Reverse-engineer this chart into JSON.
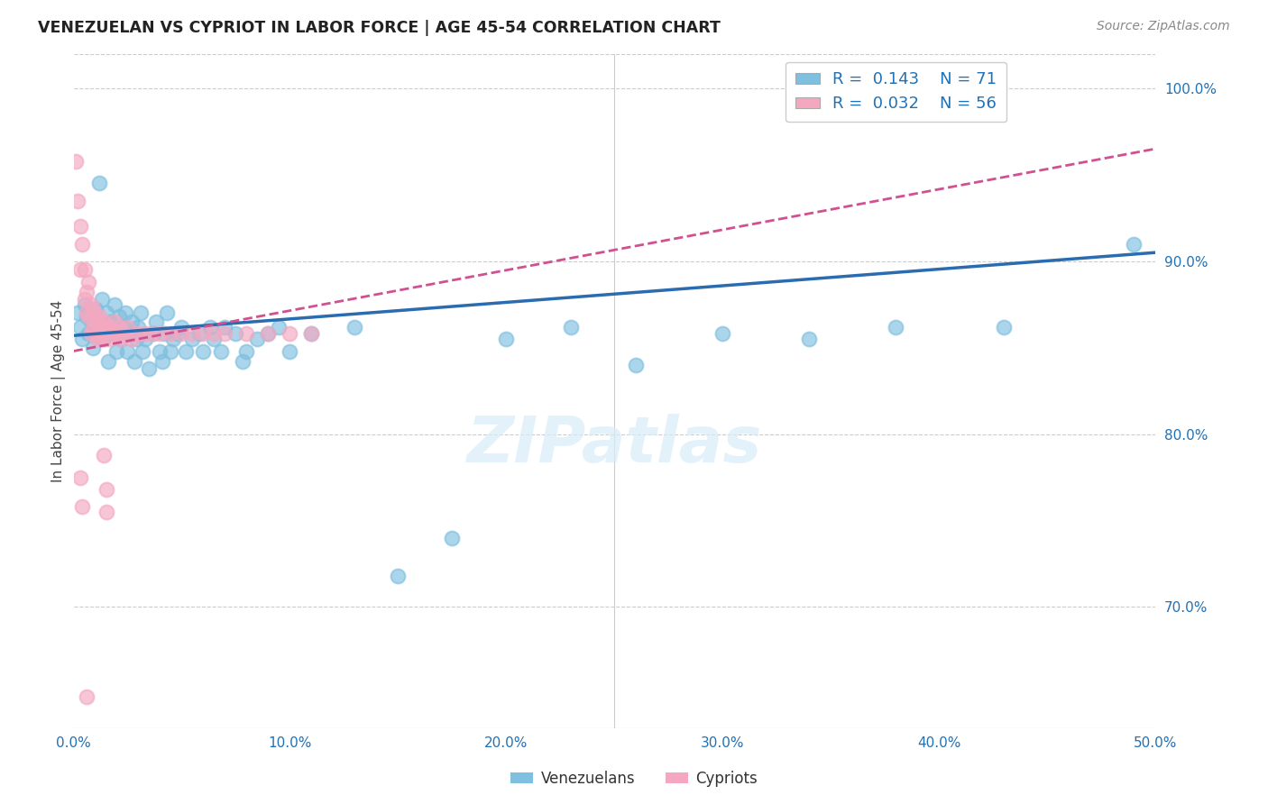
{
  "title": "VENEZUELAN VS CYPRIOT IN LABOR FORCE | AGE 45-54 CORRELATION CHART",
  "source_text": "Source: ZipAtlas.com",
  "ylabel": "In Labor Force | Age 45-54",
  "xlim": [
    0.0,
    0.5
  ],
  "ylim": [
    0.63,
    1.02
  ],
  "xticks": [
    0.0,
    0.1,
    0.2,
    0.3,
    0.4,
    0.5
  ],
  "xtick_labels": [
    "0.0%",
    "10.0%",
    "20.0%",
    "30.0%",
    "40.0%",
    "50.0%"
  ],
  "ytick_vals": [
    0.7,
    0.8,
    0.9,
    1.0
  ],
  "ytick_labels_right": [
    "70.0%",
    "80.0%",
    "90.0%",
    "100.0%"
  ],
  "legend_R_blue": "0.143",
  "legend_N_blue": "71",
  "legend_R_pink": "0.032",
  "legend_N_pink": "56",
  "blue_color": "#7fbfdf",
  "pink_color": "#f4a8c0",
  "trend_blue_color": "#2b6cb0",
  "trend_pink_color": "#d05090",
  "watermark_text": "ZIPatlas",
  "trend_blue_x0": 0.0,
  "trend_blue_y0": 0.857,
  "trend_blue_x1": 0.5,
  "trend_blue_y1": 0.905,
  "trend_pink_x0": 0.0,
  "trend_pink_y0": 0.848,
  "trend_pink_x1": 0.5,
  "trend_pink_y1": 0.965,
  "venezuelans_x": [
    0.002,
    0.003,
    0.004,
    0.005,
    0.006,
    0.007,
    0.008,
    0.009,
    0.01,
    0.011,
    0.012,
    0.013,
    0.014,
    0.015,
    0.015,
    0.016,
    0.017,
    0.018,
    0.019,
    0.02,
    0.021,
    0.022,
    0.023,
    0.024,
    0.025,
    0.026,
    0.027,
    0.028,
    0.029,
    0.03,
    0.031,
    0.032,
    0.033,
    0.035,
    0.037,
    0.038,
    0.04,
    0.041,
    0.042,
    0.043,
    0.045,
    0.046,
    0.048,
    0.05,
    0.052,
    0.055,
    0.058,
    0.06,
    0.063,
    0.065,
    0.068,
    0.07,
    0.075,
    0.078,
    0.08,
    0.085,
    0.09,
    0.095,
    0.1,
    0.11,
    0.13,
    0.15,
    0.175,
    0.2,
    0.23,
    0.26,
    0.3,
    0.34,
    0.38,
    0.43,
    0.49
  ],
  "venezuelans_y": [
    0.87,
    0.862,
    0.855,
    0.875,
    0.868,
    0.858,
    0.865,
    0.85,
    0.872,
    0.858,
    0.945,
    0.878,
    0.855,
    0.862,
    0.87,
    0.842,
    0.865,
    0.858,
    0.875,
    0.848,
    0.868,
    0.855,
    0.862,
    0.87,
    0.848,
    0.858,
    0.865,
    0.842,
    0.855,
    0.862,
    0.87,
    0.848,
    0.855,
    0.838,
    0.858,
    0.865,
    0.848,
    0.842,
    0.858,
    0.87,
    0.848,
    0.855,
    0.858,
    0.862,
    0.848,
    0.855,
    0.858,
    0.848,
    0.862,
    0.855,
    0.848,
    0.862,
    0.858,
    0.842,
    0.848,
    0.855,
    0.858,
    0.862,
    0.848,
    0.858,
    0.862,
    0.718,
    0.74,
    0.855,
    0.862,
    0.84,
    0.858,
    0.855,
    0.862,
    0.862,
    0.91
  ],
  "cypriot_x": [
    0.001,
    0.002,
    0.003,
    0.003,
    0.004,
    0.005,
    0.005,
    0.006,
    0.006,
    0.007,
    0.007,
    0.008,
    0.008,
    0.009,
    0.009,
    0.01,
    0.01,
    0.011,
    0.011,
    0.012,
    0.012,
    0.013,
    0.013,
    0.014,
    0.014,
    0.015,
    0.016,
    0.017,
    0.018,
    0.019,
    0.02,
    0.021,
    0.022,
    0.023,
    0.025,
    0.027,
    0.03,
    0.033,
    0.036,
    0.04,
    0.045,
    0.05,
    0.055,
    0.06,
    0.065,
    0.07,
    0.08,
    0.09,
    0.1,
    0.11,
    0.014,
    0.015,
    0.015,
    0.003,
    0.004,
    0.006
  ],
  "cypriot_y": [
    0.958,
    0.935,
    0.92,
    0.895,
    0.91,
    0.895,
    0.878,
    0.882,
    0.87,
    0.888,
    0.868,
    0.875,
    0.858,
    0.872,
    0.862,
    0.868,
    0.858,
    0.865,
    0.855,
    0.858,
    0.868,
    0.862,
    0.855,
    0.858,
    0.865,
    0.862,
    0.855,
    0.862,
    0.858,
    0.865,
    0.858,
    0.862,
    0.855,
    0.858,
    0.862,
    0.855,
    0.858,
    0.858,
    0.858,
    0.858,
    0.858,
    0.858,
    0.858,
    0.858,
    0.858,
    0.858,
    0.858,
    0.858,
    0.858,
    0.858,
    0.788,
    0.768,
    0.755,
    0.775,
    0.758,
    0.648
  ]
}
